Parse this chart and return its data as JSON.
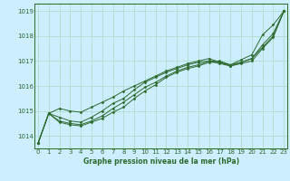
{
  "title": "Graphe pression niveau de la mer (hPa)",
  "bg_color": "#cceeff",
  "grid_color": "#b0ddcc",
  "line_color": "#2d6a2d",
  "marker_color": "#2d6a2d",
  "xlim": [
    -0.3,
    23.3
  ],
  "ylim": [
    1013.5,
    1019.3
  ],
  "yticks": [
    1014,
    1015,
    1016,
    1017,
    1018,
    1019
  ],
  "xticks": [
    0,
    1,
    2,
    3,
    4,
    5,
    6,
    7,
    8,
    9,
    10,
    11,
    12,
    13,
    14,
    15,
    16,
    17,
    18,
    19,
    20,
    21,
    22,
    23
  ],
  "series": [
    [
      1013.7,
      1014.9,
      1015.1,
      1015.0,
      1014.95,
      1015.15,
      1015.35,
      1015.55,
      1015.8,
      1016.0,
      1016.2,
      1016.4,
      1016.6,
      1016.75,
      1016.9,
      1017.0,
      1017.1,
      1016.95,
      1016.85,
      1017.05,
      1017.25,
      1018.05,
      1018.45,
      1019.0
    ],
    [
      1013.7,
      1014.9,
      1014.75,
      1014.6,
      1014.55,
      1014.75,
      1015.0,
      1015.3,
      1015.5,
      1015.85,
      1016.15,
      1016.35,
      1016.55,
      1016.7,
      1016.85,
      1016.95,
      1017.0,
      1016.9,
      1016.8,
      1016.95,
      1017.1,
      1017.65,
      1018.1,
      1019.0
    ],
    [
      1013.7,
      1014.9,
      1014.6,
      1014.5,
      1014.45,
      1014.6,
      1014.8,
      1015.1,
      1015.35,
      1015.65,
      1015.95,
      1016.15,
      1016.4,
      1016.6,
      1016.75,
      1016.85,
      1017.0,
      1017.0,
      1016.85,
      1016.95,
      1017.1,
      1017.55,
      1018.0,
      1019.0
    ],
    [
      1013.7,
      1014.9,
      1014.55,
      1014.45,
      1014.4,
      1014.55,
      1014.7,
      1014.95,
      1015.15,
      1015.5,
      1015.8,
      1016.05,
      1016.35,
      1016.55,
      1016.7,
      1016.8,
      1016.95,
      1016.95,
      1016.8,
      1016.9,
      1017.0,
      1017.5,
      1017.95,
      1019.0
    ]
  ]
}
